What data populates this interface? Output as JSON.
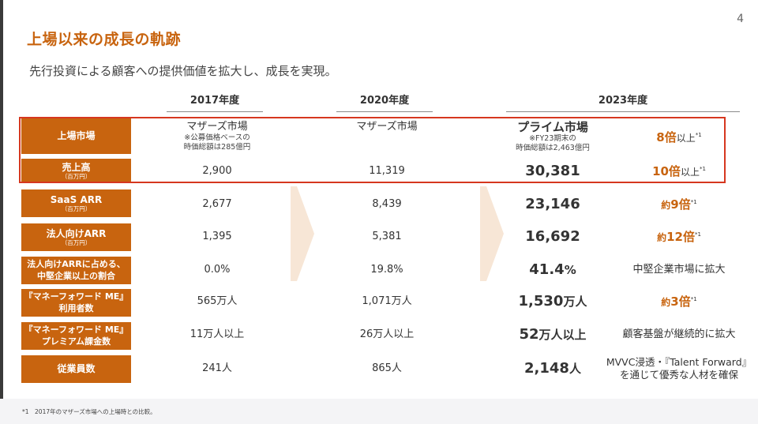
{
  "page_number": "4",
  "title": "上場以来の成長の軌跡",
  "subtitle": "先行投資による顧客への提供価値を拡大し、成長を実現。",
  "years": [
    "2017年度",
    "2020年度",
    "2023年度"
  ],
  "rows": [
    {
      "label": "上場市場",
      "label_sub": "",
      "y2017": "マザーズ市場",
      "y2017_note": "※公募価格ベースの\n時価総額は285億円",
      "y2020": "マザーズ市場",
      "y2023": "プライム市場",
      "y2023_note": "※FY23期末の\n時価総額は2,463億円",
      "mult_prefix": "",
      "mult_value": "8倍",
      "mult_tail": "以上",
      "mult_sup": "*1",
      "comment": ""
    },
    {
      "label": "売上高",
      "label_sub": "（百万円）",
      "y2017": "2,900",
      "y2020": "11,319",
      "y2023": "30,381",
      "y2023_unit": "",
      "mult_prefix": "",
      "mult_value": "10倍",
      "mult_tail": "以上",
      "mult_sup": "*1",
      "comment": ""
    },
    {
      "label": "SaaS ARR",
      "label_sub": "（百万円）",
      "y2017": "2,677",
      "y2020": "8,439",
      "y2023": "23,146",
      "y2023_unit": "",
      "mult_prefix": "約",
      "mult_value": "9倍",
      "mult_tail": "",
      "mult_sup": "*1",
      "comment": ""
    },
    {
      "label": "法人向けARR",
      "label_sub": "（百万円）",
      "y2017": "1,395",
      "y2020": "5,381",
      "y2023": "16,692",
      "y2023_unit": "",
      "mult_prefix": "約",
      "mult_value": "12倍",
      "mult_tail": "",
      "mult_sup": "*1",
      "comment": ""
    },
    {
      "label": "法人向けARRに占める、\n中堅企業以上の割合",
      "label_sub": "",
      "y2017": "0.0%",
      "y2020": "19.8%",
      "y2023": "41.4",
      "y2023_unit": "%",
      "comment": "中堅企業市場に拡大"
    },
    {
      "label": "『マネーフォワード ME』\n利用者数",
      "label_sub": "",
      "y2017": "565万人",
      "y2020": "1,071万人",
      "y2023": "1,530",
      "y2023_unit": "万人",
      "mult_prefix": "約",
      "mult_value": "3倍",
      "mult_tail": "",
      "mult_sup": "*1",
      "comment": ""
    },
    {
      "label": "『マネーフォワード ME』\nプレミアム課金数",
      "label_sub": "",
      "y2017": "11万人以上",
      "y2020": "26万人以上",
      "y2023": "52",
      "y2023_unit": "万人以上",
      "comment": "顧客基盤が継続的に拡大"
    },
    {
      "label": "従業員数",
      "label_sub": "",
      "y2017": "241人",
      "y2020": "865人",
      "y2023": "2,148",
      "y2023_unit": "人",
      "comment": "MVVC浸透・『Talent Forward』\nを通じて優秀な人材を確保"
    }
  ],
  "footnote": "*1　2017年のマザーズ市場への上場時との比較。",
  "colors": {
    "accent": "#c8640f",
    "highlight_border": "#d6371f",
    "arrow": "#f7e6d6"
  }
}
